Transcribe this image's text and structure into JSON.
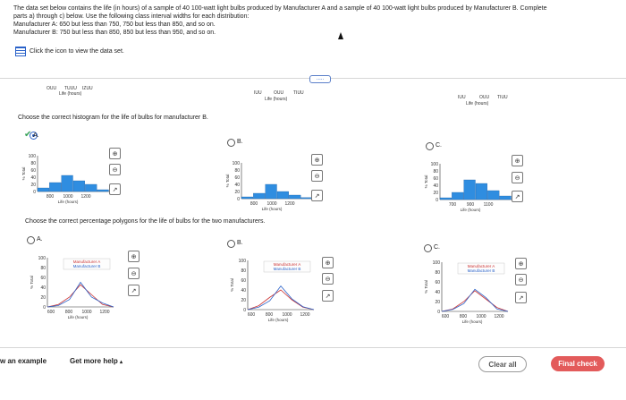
{
  "intro": {
    "line1": "The data set below contains the life (in hours) of a sample of 40 100-watt light bulbs produced by Manufacturer A and a sample of 40 100-watt light bulbs produced by Manufacturer B. Complete",
    "line2": "parts a) through c) below. Use the following class interval widths for each distribution:",
    "line3": "Manufacturer A: 650 but less than 750, 750 but less than 850, and so on.",
    "line4": "Manufacturer B: 750 but less than 850, 850 but less than 950, and so on.",
    "data_link": "Click the icon to view the data set."
  },
  "prev_answer": {
    "ticks_left": [
      "OUU",
      "TUUU",
      "IZUU"
    ],
    "xlabel_left": "Life (hours)",
    "ticks_mid": [
      "IUU",
      "OUU",
      "TIUU"
    ],
    "xlabel_mid": "Life (hours)",
    "ticks_right": [
      "IUU",
      "OUU",
      "TIUU"
    ],
    "xlabel_right": "Life (hours)",
    "more_label": "....."
  },
  "q2": {
    "prompt": "Choose the correct histogram for the life of bulbs for manufacturer B.",
    "options": [
      {
        "label": "A.",
        "y_ticks": [
          "100",
          "80",
          "60",
          "40",
          "20",
          "0"
        ],
        "y_label": "% Total",
        "x_ticks": [
          "800",
          "1000",
          "1200"
        ],
        "x_label": "Life (hours)"
      },
      {
        "label": "B.",
        "y_ticks": [
          "100",
          "80",
          "60",
          "40",
          "20",
          "0"
        ],
        "y_label": "% Total",
        "x_ticks": [
          "800",
          "1000",
          "1200"
        ],
        "x_label": "Life (hours)"
      },
      {
        "label": "C.",
        "y_ticks": [
          "100",
          "80",
          "60",
          "40",
          "20",
          "0"
        ],
        "y_label": "% Total",
        "x_ticks": [
          "700",
          "900",
          "1100"
        ],
        "x_label": "Life (hours)"
      }
    ]
  },
  "q3": {
    "prompt": "Choose the correct percentage polygons for the life of bulbs for the two manufacturers.",
    "options": [
      {
        "label": "A.",
        "y_ticks": [
          "100",
          "80",
          "60",
          "40",
          "20",
          "0"
        ],
        "y_label": "% Total",
        "x_ticks": [
          "600",
          "800",
          "1000",
          "1200"
        ],
        "x_label": "Life (hours)",
        "legend": [
          "Manufacturer A",
          "Manufacturer B"
        ]
      },
      {
        "label": "B.",
        "y_ticks": [
          "100",
          "80",
          "60",
          "40",
          "20",
          "0"
        ],
        "y_label": "% Total",
        "x_ticks": [
          "600",
          "800",
          "1000",
          "1200"
        ],
        "x_label": "Life (hours)",
        "legend": [
          "Manufacturer A",
          "Manufacturer B"
        ]
      },
      {
        "label": "C.",
        "y_ticks": [
          "100",
          "80",
          "60",
          "40",
          "20",
          "0"
        ],
        "y_label": "% Total",
        "x_ticks": [
          "600",
          "800",
          "1000",
          "1200"
        ],
        "x_label": "Life (hours)",
        "legend": [
          "Manufacturer A",
          "Manufacturer B"
        ]
      }
    ]
  },
  "footer": {
    "example": "w an example",
    "help": "Get more help",
    "clear": "Clear all",
    "final": "Final check"
  },
  "colors": {
    "bar": "#2f8de0",
    "series_a": "#cc3333",
    "series_b": "#2a62c9",
    "accent": "#d9534f"
  }
}
